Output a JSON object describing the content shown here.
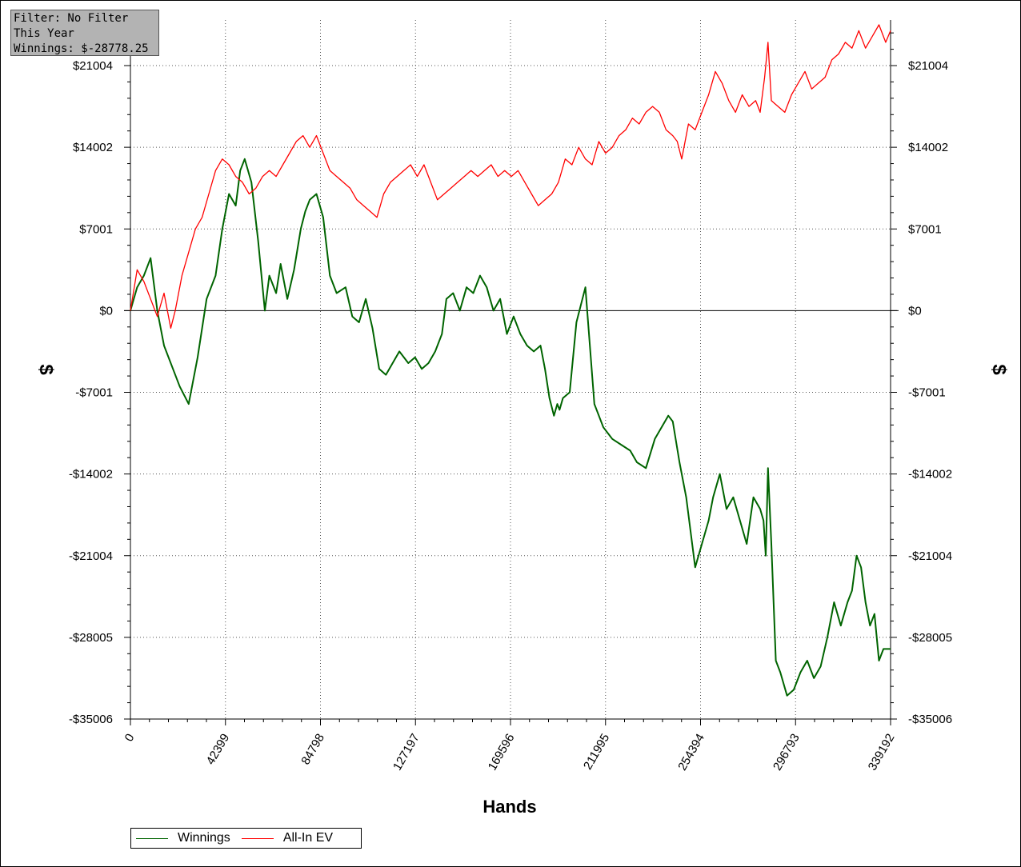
{
  "info_box": {
    "filter": "Filter: No Filter",
    "period": "This Year",
    "winnings": "Winnings: $-28778.25"
  },
  "legend": {
    "winnings_label": "Winnings",
    "allin_label": "All-In EV"
  },
  "colors": {
    "winnings": "#006400",
    "allin": "#ff0000",
    "axis": "#000000",
    "grid": "#555555",
    "info_bg": "#b3b3b3"
  },
  "chart_data": {
    "type": "line",
    "xlabel": "Hands",
    "ylabel": "$",
    "xlim": [
      0,
      339192
    ],
    "ylim": [
      -35006,
      25000
    ],
    "x_ticks": [
      "0",
      "42399",
      "84798",
      "127197",
      "169596",
      "211995",
      "254394",
      "296793",
      "339192"
    ],
    "y_ticks": [
      {
        "value": 21004,
        "label": "$21004"
      },
      {
        "value": 14002,
        "label": "$14002"
      },
      {
        "value": 7001,
        "label": "$7001"
      },
      {
        "value": 0,
        "label": "$0"
      },
      {
        "value": -7001,
        "label": "-$7001"
      },
      {
        "value": -14002,
        "label": "-$14002"
      },
      {
        "value": -21004,
        "label": "-$21004"
      },
      {
        "value": -28005,
        "label": "-$28005"
      },
      {
        "value": -35006,
        "label": "-$35006"
      }
    ],
    "grid": true,
    "zero_line": true,
    "legend_position": "bottom-left",
    "series": [
      {
        "name": "Winnings",
        "color": "#006400",
        "x": [
          0,
          3000,
          6000,
          9000,
          12000,
          15000,
          19000,
          22000,
          26000,
          30000,
          34000,
          38000,
          41000,
          44000,
          47000,
          49000,
          51000,
          54000,
          57000,
          60000,
          62000,
          65000,
          67000,
          70000,
          73000,
          76000,
          78000,
          80000,
          83000,
          86000,
          89000,
          92000,
          96000,
          99000,
          102000,
          105000,
          108000,
          111000,
          114000,
          117000,
          120000,
          124000,
          127000,
          130000,
          133000,
          136000,
          139000,
          141000,
          144000,
          147000,
          150000,
          153000,
          156000,
          159000,
          162000,
          165000,
          168000,
          171000,
          174000,
          177000,
          180000,
          183000,
          185000,
          187000,
          189000,
          190500,
          191500,
          193000,
          196000,
          199000,
          203000,
          207000,
          211000,
          215000,
          219000,
          223000,
          226000,
          230000,
          234000,
          237000,
          240000,
          242000,
          245000,
          248000,
          252000,
          255000,
          258000,
          260000,
          263000,
          266000,
          269000,
          272000,
          275000,
          278000,
          281000,
          282500,
          283500,
          284500,
          286000,
          288000,
          290000,
          293000,
          296000,
          299000,
          302000,
          305000,
          308000,
          311000,
          314000,
          317000,
          320000,
          322000,
          324000,
          326000,
          328000,
          330000,
          332000,
          334000,
          336000,
          339192
        ],
        "y": [
          0,
          2000,
          3000,
          4500,
          0,
          -3000,
          -5000,
          -6500,
          -8000,
          -4000,
          1000,
          3000,
          7000,
          10000,
          9000,
          12000,
          13000,
          11000,
          6000,
          0,
          3000,
          1500,
          4000,
          1000,
          3500,
          7000,
          8500,
          9500,
          10000,
          8000,
          3000,
          1500,
          2000,
          -500,
          -1000,
          1000,
          -1500,
          -5000,
          -5500,
          -4500,
          -3500,
          -4500,
          -4000,
          -5000,
          -4500,
          -3500,
          -2000,
          1000,
          1500,
          0,
          2000,
          1500,
          3000,
          2000,
          0,
          1000,
          -2000,
          -500,
          -2000,
          -3000,
          -3500,
          -3000,
          -5000,
          -7500,
          -9000,
          -8000,
          -8500,
          -7500,
          -7000,
          -1000,
          2000,
          -8000,
          -10000,
          -11000,
          -11500,
          -12000,
          -13000,
          -13500,
          -11000,
          -10000,
          -9000,
          -9500,
          -13000,
          -16000,
          -22000,
          -20000,
          -18000,
          -16000,
          -14000,
          -17000,
          -16000,
          -18000,
          -20000,
          -16000,
          -17000,
          -18000,
          -21000,
          -13500,
          -20000,
          -30000,
          -31000,
          -33000,
          -32500,
          -31000,
          -30000,
          -31500,
          -30500,
          -28000,
          -25000,
          -27000,
          -25000,
          -24000,
          -21000,
          -22000,
          -25000,
          -27000,
          -26000,
          -30000,
          -29000,
          -29000
        ]
      },
      {
        "name": "All-In EV",
        "color": "#ff0000",
        "x": [
          0,
          3000,
          6000,
          9000,
          12000,
          15000,
          18000,
          20000,
          23000,
          26000,
          29000,
          32000,
          35000,
          38000,
          41000,
          44000,
          47000,
          50000,
          53000,
          56000,
          59000,
          62000,
          65000,
          68000,
          71000,
          74000,
          77000,
          80000,
          83000,
          86000,
          89000,
          92000,
          95000,
          98000,
          101000,
          104000,
          107000,
          110000,
          113000,
          116000,
          119000,
          122000,
          125000,
          128000,
          131000,
          134000,
          137000,
          140000,
          143000,
          146000,
          149000,
          152000,
          155000,
          158000,
          161000,
          164000,
          167000,
          170000,
          173000,
          176000,
          179000,
          182000,
          185000,
          188000,
          191000,
          194000,
          197000,
          200000,
          203000,
          206000,
          209000,
          212000,
          215000,
          218000,
          221000,
          224000,
          227000,
          230000,
          233000,
          236000,
          239000,
          242000,
          244000,
          246000,
          249000,
          252000,
          255000,
          258000,
          261000,
          264000,
          267000,
          270000,
          273000,
          276000,
          279000,
          281000,
          283000,
          284500,
          286000,
          289000,
          292000,
          295000,
          298000,
          301000,
          304000,
          307000,
          310000,
          313000,
          316000,
          319000,
          322000,
          325000,
          328000,
          331000,
          334000,
          337000,
          339192
        ],
        "y": [
          0,
          3500,
          2500,
          1000,
          -500,
          1500,
          -1500,
          0,
          3000,
          5000,
          7000,
          8000,
          10000,
          12000,
          13000,
          12500,
          11500,
          11000,
          10000,
          10500,
          11500,
          12000,
          11500,
          12500,
          13500,
          14500,
          15000,
          14000,
          15000,
          13500,
          12000,
          11500,
          11000,
          10500,
          9500,
          9000,
          8500,
          8000,
          10000,
          11000,
          11500,
          12000,
          12500,
          11500,
          12500,
          11000,
          9500,
          10000,
          10500,
          11000,
          11500,
          12000,
          11500,
          12000,
          12500,
          11500,
          12000,
          11500,
          12000,
          11000,
          10000,
          9000,
          9500,
          10000,
          11000,
          13000,
          12500,
          14000,
          13000,
          12500,
          14500,
          13500,
          14000,
          15000,
          15500,
          16500,
          16000,
          17000,
          17500,
          17000,
          15500,
          15000,
          14500,
          13000,
          16000,
          15500,
          17000,
          18500,
          20500,
          19500,
          18000,
          17000,
          18500,
          17500,
          18000,
          17000,
          20000,
          23000,
          18000,
          17500,
          17000,
          18500,
          19500,
          20500,
          19000,
          19500,
          20000,
          21500,
          22000,
          23000,
          22500,
          24000,
          22500,
          23500,
          24500,
          23000,
          24000
        ]
      }
    ]
  }
}
